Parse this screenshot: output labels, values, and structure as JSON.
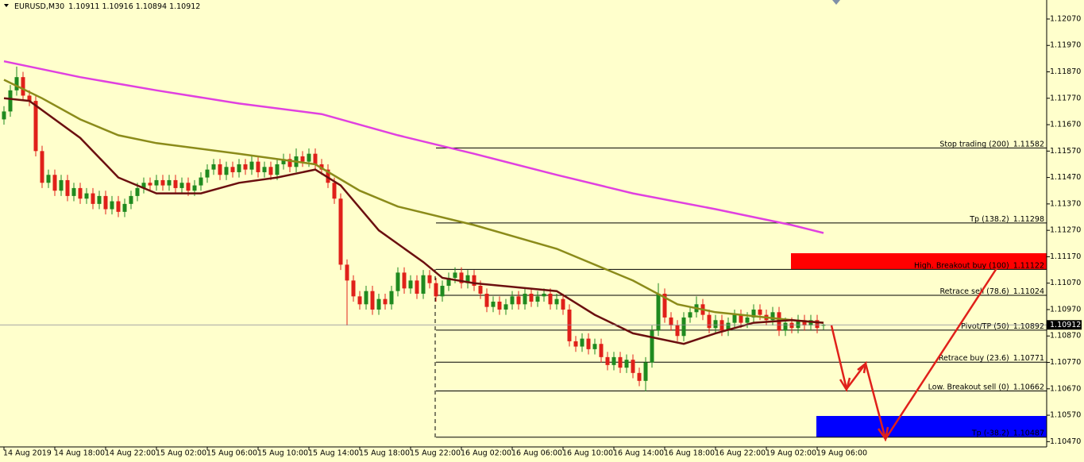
{
  "chart_data": {
    "type": "candlestick",
    "title": "EURUSD,M30",
    "ylim": [
      1.1045,
      1.12142
    ],
    "yticks": [
      {
        "value": 1.1207,
        "label": "1.12070"
      },
      {
        "value": 1.1197,
        "label": "1.11970"
      },
      {
        "value": 1.1187,
        "label": "1.11870"
      },
      {
        "value": 1.1177,
        "label": "1.11770"
      },
      {
        "value": 1.1167,
        "label": "1.11670"
      },
      {
        "value": 1.1157,
        "label": "1.11570"
      },
      {
        "value": 1.1147,
        "label": "1.11470"
      },
      {
        "value": 1.1137,
        "label": "1.11370"
      },
      {
        "value": 1.1127,
        "label": "1.11270"
      },
      {
        "value": 1.1117,
        "label": "1.11170"
      },
      {
        "value": 1.1107,
        "label": "1.11070"
      },
      {
        "value": 1.1097,
        "label": "1.10970"
      },
      {
        "value": 1.1087,
        "label": "1.10870"
      },
      {
        "value": 1.1077,
        "label": "1.10770"
      },
      {
        "value": 1.1067,
        "label": "1.10670"
      },
      {
        "value": 1.1057,
        "label": "1.10570"
      },
      {
        "value": 1.1047,
        "label": "1.10470"
      }
    ],
    "categories": [
      "14 Aug 2019",
      null,
      null,
      null,
      null,
      null,
      null,
      null,
      "14 Aug 18:00",
      null,
      null,
      null,
      null,
      null,
      null,
      null,
      "14 Aug 22:00",
      null,
      null,
      null,
      null,
      null,
      null,
      null,
      "15 Aug 02:00",
      null,
      null,
      null,
      null,
      null,
      null,
      null,
      "15 Aug 06:00",
      null,
      null,
      null,
      null,
      null,
      null,
      null,
      "15 Aug 10:00",
      null,
      null,
      null,
      null,
      null,
      null,
      null,
      "15 Aug 14:00",
      null,
      null,
      null,
      null,
      null,
      null,
      null,
      "15 Aug 18:00",
      null,
      null,
      null,
      null,
      null,
      null,
      null,
      "15 Aug 22:00",
      null,
      null,
      null,
      null,
      null,
      null,
      null,
      "16 Aug 02:00",
      null,
      null,
      null,
      null,
      null,
      null,
      null,
      "16 Aug 06:00",
      null,
      null,
      null,
      null,
      null,
      null,
      null,
      "16 Aug 10:00",
      null,
      null,
      null,
      null,
      null,
      null,
      null,
      "16 Aug 14:00",
      null,
      null,
      null,
      null,
      null,
      null,
      null,
      "16 Aug 18:00",
      null,
      null,
      null,
      null,
      null,
      null,
      null,
      "16 Aug 22:00",
      null,
      null,
      null,
      null,
      null,
      null,
      null,
      "19 Aug 02:00",
      null,
      null,
      null,
      null,
      null,
      null,
      null,
      "19 Aug 06:00",
      null
    ],
    "open": [
      1.1169,
      1.1172,
      1.118,
      1.1185,
      1.1178,
      1.1176,
      1.1157,
      1.1145,
      1.1148,
      1.1142,
      1.1146,
      1.114,
      1.1143,
      1.1139,
      1.1141,
      1.1137,
      1.114,
      1.1135,
      1.1138,
      1.1134,
      1.1137,
      1.114,
      1.1143,
      1.1145,
      1.1144,
      1.1146,
      1.1144,
      1.1146,
      1.1143,
      1.1145,
      1.1142,
      1.1144,
      1.1147,
      1.115,
      1.1152,
      1.1148,
      1.1151,
      1.1149,
      1.1152,
      1.115,
      1.1153,
      1.1149,
      1.1151,
      1.1148,
      1.1152,
      1.1154,
      1.1151,
      1.1155,
      1.1153,
      1.1156,
      1.1152,
      1.115,
      1.1145,
      1.1139,
      1.1114,
      1.1108,
      1.1102,
      1.1099,
      1.1104,
      1.1097,
      1.1101,
      1.1099,
      1.1104,
      1.1111,
      1.1105,
      1.1108,
      1.1103,
      1.111,
      1.1107,
      1.1102,
      1.1106,
      1.1109,
      1.1111,
      1.1107,
      1.111,
      1.1106,
      1.1103,
      1.1098,
      1.11,
      1.1097,
      1.1099,
      1.1102,
      1.1099,
      1.1103,
      1.11,
      1.1102,
      1.1103,
      1.1099,
      1.1101,
      1.1097,
      1.1085,
      1.1083,
      1.1086,
      1.1082,
      1.1084,
      1.1079,
      1.1076,
      1.1079,
      1.1075,
      1.1078,
      1.1073,
      1.107,
      1.1077,
      1.1089,
      1.1103,
      1.1094,
      1.1091,
      1.1087,
      1.1094,
      1.1096,
      1.1099,
      1.1095,
      1.109,
      1.1093,
      1.1089,
      1.1092,
      1.1095,
      1.1092,
      1.1094,
      1.1097,
      1.1095,
      1.1093,
      1.1096,
      1.1089,
      1.1092,
      1.109,
      1.1093,
      1.1091,
      1.1093,
      1.10911
    ],
    "high": [
      1.1174,
      1.1182,
      1.1189,
      1.1187,
      1.118,
      1.1178,
      1.1159,
      1.115,
      1.115,
      1.1148,
      1.1148,
      1.1145,
      1.1145,
      1.1143,
      1.1143,
      1.1142,
      1.1142,
      1.114,
      1.114,
      1.1139,
      1.1142,
      1.1145,
      1.1147,
      1.1147,
      1.1148,
      1.1148,
      1.1148,
      1.1148,
      1.1147,
      1.1147,
      1.1146,
      1.1149,
      1.1152,
      1.1154,
      1.1154,
      1.1153,
      1.1153,
      1.1154,
      1.1154,
      1.1155,
      1.1155,
      1.1153,
      1.1153,
      1.1154,
      1.1156,
      1.1156,
      1.1158,
      1.1157,
      1.1158,
      1.1158,
      1.1154,
      1.1152,
      1.1147,
      1.1141,
      1.1116,
      1.111,
      1.1104,
      1.1106,
      1.1106,
      1.1103,
      1.1103,
      1.1106,
      1.1113,
      1.1113,
      1.111,
      1.111,
      1.1112,
      1.1112,
      1.1109,
      1.1108,
      1.1111,
      1.1113,
      1.1113,
      1.1112,
      1.1112,
      1.1108,
      1.1105,
      1.1102,
      1.1102,
      1.1101,
      1.1104,
      1.1104,
      1.1105,
      1.1105,
      1.1104,
      1.1105,
      1.1105,
      1.1103,
      1.1103,
      1.1099,
      1.1087,
      1.1088,
      1.1088,
      1.1086,
      1.1086,
      1.1081,
      1.1081,
      1.1081,
      1.108,
      1.108,
      1.1075,
      1.1079,
      1.1091,
      1.1107,
      1.1105,
      1.1096,
      1.1093,
      1.1096,
      1.1098,
      1.1102,
      1.1101,
      1.1097,
      1.1095,
      1.1095,
      1.1094,
      1.1097,
      1.1097,
      1.1096,
      1.1099,
      1.1099,
      1.1097,
      1.1098,
      1.1098,
      1.1094,
      1.1094,
      1.1095,
      1.1095,
      1.1095,
      1.1095,
      1.10916
    ],
    "low": [
      1.1167,
      1.117,
      1.1178,
      1.1176,
      1.1174,
      1.1155,
      1.1143,
      1.1143,
      1.114,
      1.114,
      1.1138,
      1.1138,
      1.1137,
      1.1137,
      1.1135,
      1.1135,
      1.1133,
      1.1133,
      1.1132,
      1.1132,
      1.1135,
      1.1138,
      1.1141,
      1.1142,
      1.1142,
      1.1142,
      1.1142,
      1.1141,
      1.1141,
      1.114,
      1.114,
      1.1142,
      1.1145,
      1.1148,
      1.1146,
      1.1146,
      1.1147,
      1.1147,
      1.1148,
      1.1148,
      1.1147,
      1.1147,
      1.1146,
      1.1146,
      1.115,
      1.1149,
      1.1149,
      1.1151,
      1.1151,
      1.115,
      1.1148,
      1.1143,
      1.1137,
      1.1112,
      1.1091,
      1.11,
      1.1097,
      1.1097,
      1.1095,
      1.1095,
      1.1097,
      1.1097,
      1.1102,
      1.1103,
      1.1103,
      1.1101,
      1.1101,
      1.1105,
      1.11,
      1.11,
      1.1104,
      1.1107,
      1.1105,
      1.1105,
      1.1104,
      1.1101,
      1.1096,
      1.1096,
      1.1095,
      1.1095,
      1.1097,
      1.1097,
      1.1097,
      1.1098,
      1.1098,
      1.11,
      1.1097,
      1.1097,
      1.1095,
      1.1083,
      1.1081,
      1.1081,
      1.108,
      1.108,
      1.1077,
      1.1074,
      1.1074,
      1.1073,
      1.1073,
      1.1071,
      1.1068,
      1.1066,
      1.1075,
      1.1087,
      1.1092,
      1.1089,
      1.1085,
      1.1085,
      1.1092,
      1.1094,
      1.1093,
      1.1088,
      1.1088,
      1.1087,
      1.1087,
      1.109,
      1.109,
      1.109,
      1.1092,
      1.1093,
      1.1091,
      1.1091,
      1.1087,
      1.1087,
      1.1088,
      1.1088,
      1.1089,
      1.1089,
      1.1088,
      1.10894
    ],
    "close": [
      1.1172,
      1.118,
      1.1185,
      1.1178,
      1.1176,
      1.1157,
      1.1145,
      1.1148,
      1.1142,
      1.1146,
      1.114,
      1.1143,
      1.1139,
      1.1141,
      1.1137,
      1.114,
      1.1135,
      1.1138,
      1.1134,
      1.1137,
      1.114,
      1.1143,
      1.1145,
      1.1144,
      1.1146,
      1.1144,
      1.1146,
      1.1143,
      1.1145,
      1.1142,
      1.1144,
      1.1147,
      1.115,
      1.1152,
      1.1148,
      1.1151,
      1.1149,
      1.1152,
      1.115,
      1.1153,
      1.1149,
      1.1151,
      1.1148,
      1.1152,
      1.1154,
      1.1151,
      1.1155,
      1.1153,
      1.1156,
      1.1152,
      1.115,
      1.1145,
      1.1139,
      1.1114,
      1.1108,
      1.1102,
      1.1099,
      1.1104,
      1.1097,
      1.1101,
      1.1099,
      1.1104,
      1.1111,
      1.1105,
      1.1108,
      1.1103,
      1.111,
      1.1107,
      1.1102,
      1.1106,
      1.1109,
      1.1111,
      1.1107,
      1.111,
      1.1106,
      1.1103,
      1.1098,
      1.11,
      1.1097,
      1.1099,
      1.1102,
      1.1099,
      1.1103,
      1.11,
      1.1102,
      1.1103,
      1.1099,
      1.1101,
      1.1097,
      1.1085,
      1.1083,
      1.1086,
      1.1082,
      1.1084,
      1.1079,
      1.1076,
      1.1079,
      1.1075,
      1.1078,
      1.1073,
      1.107,
      1.1077,
      1.1089,
      1.1103,
      1.1094,
      1.1091,
      1.1087,
      1.1094,
      1.1096,
      1.1099,
      1.1095,
      1.109,
      1.1093,
      1.1089,
      1.1092,
      1.1095,
      1.1092,
      1.1094,
      1.1097,
      1.1095,
      1.1093,
      1.1096,
      1.1089,
      1.1092,
      1.109,
      1.1093,
      1.1091,
      1.1093,
      1.109,
      1.10912
    ],
    "up_color": "#1f8a1f",
    "down_color": "#e0201a",
    "lines": [
      {
        "color": "#e040e0",
        "x": [
          0,
          12,
          24,
          37,
          50,
          62,
          74,
          87,
          99,
          112,
          124,
          129
        ],
        "values": [
          1.1191,
          1.1185,
          1.118,
          1.1175,
          1.1171,
          1.1163,
          1.1156,
          1.1148,
          1.1141,
          1.1135,
          1.1129,
          1.1126
        ]
      },
      {
        "color": "#8b8b1a",
        "x": [
          0,
          6,
          12,
          18,
          24,
          37,
          49,
          56,
          62,
          74,
          87,
          99,
          106,
          112,
          124,
          129
        ],
        "values": [
          1.1184,
          1.1177,
          1.1169,
          1.1163,
          1.116,
          1.1156,
          1.1152,
          1.1142,
          1.1136,
          1.1129,
          1.112,
          1.1108,
          1.1099,
          1.1096,
          1.1093,
          1.1092
        ]
      },
      {
        "color": "#6b0f0f",
        "x": [
          0,
          4,
          12,
          18,
          24,
          31,
          37,
          43,
          49,
          53,
          59,
          66,
          69,
          74,
          87,
          93,
          99,
          107,
          112,
          118,
          124,
          129
        ],
        "values": [
          1.1177,
          1.1176,
          1.1162,
          1.1147,
          1.1141,
          1.1141,
          1.1145,
          1.1147,
          1.115,
          1.1144,
          1.1127,
          1.1115,
          1.1109,
          1.1107,
          1.1104,
          1.1095,
          1.1088,
          1.1084,
          1.1088,
          1.1092,
          1.1093,
          1.1092
        ]
      }
    ],
    "levels_start": 68,
    "levels": [
      {
        "name": "Stop trading (200)",
        "value": 1.11582
      },
      {
        "name": "Tp (138.2)",
        "value": 1.11298
      },
      {
        "name": "High. Breakout buy  (100)",
        "value": 1.11122
      },
      {
        "name": "Retrace sell (78.6)",
        "value": 1.11024
      },
      {
        "name": "Pivot/TP (50)",
        "value": 1.10892
      },
      {
        "name": "Retrace buy (23.6)",
        "value": 1.10771
      },
      {
        "name": "Low. Breakout sell (0)",
        "value": 1.10662
      },
      {
        "name": "Tp (-38.2)",
        "value": 1.10487
      }
    ]
  }
}
